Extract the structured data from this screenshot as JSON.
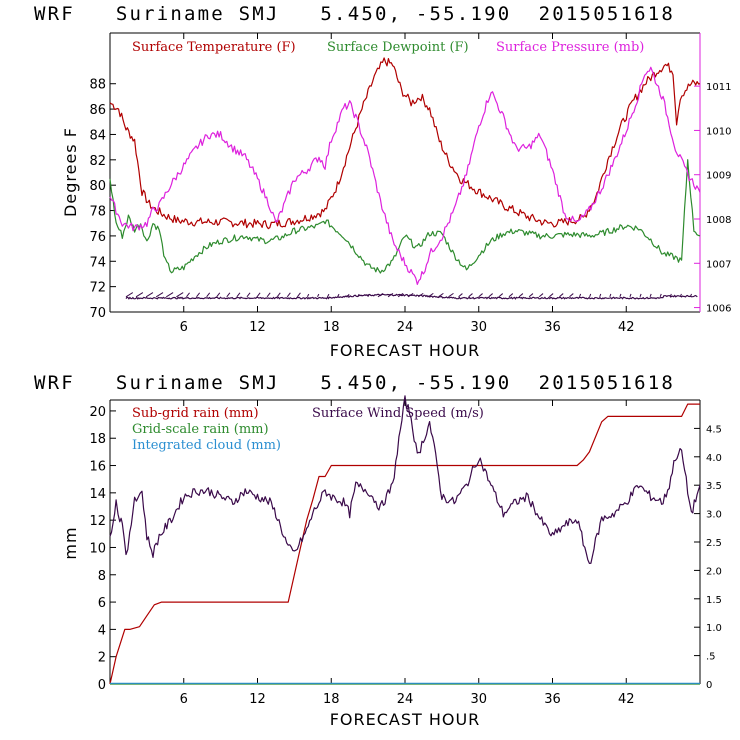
{
  "top_title": "WRF   Suriname SMJ   5.450, -55.190  2015051618",
  "bottom_title": "WRF   Suriname SMJ   5.450, -55.190  2015051618",
  "chart_data": [
    {
      "type": "line",
      "title": "WRF   Suriname SMJ   5.450, -55.190  2015051618",
      "xlabel": "FORECAST HOUR",
      "ylabel": "Degrees F",
      "xlim": [
        0,
        48
      ],
      "ylim": [
        70,
        92
      ],
      "y2lim": [
        1005.9,
        1012.2
      ],
      "x_ticks": [
        6,
        12,
        18,
        24,
        30,
        36,
        42
      ],
      "y_ticks": [
        70,
        72,
        74,
        76,
        78,
        80,
        82,
        84,
        86,
        88
      ],
      "y2_ticks": [
        {
          "v": 1006,
          "label": "1006"
        },
        {
          "v": 1007,
          "label": "1007"
        },
        {
          "v": 1008,
          "label": "1008"
        },
        {
          "v": 1009,
          "label": "1009"
        },
        {
          "v": 1010,
          "label": "1010"
        },
        {
          "v": 1011,
          "label": "1011"
        }
      ],
      "series": [
        {
          "name": "Surface Temperature (F)",
          "color": "#b00000",
          "axis": "left",
          "x": [
            0,
            0.7,
            1.3,
            2,
            2.6,
            3.2,
            3.8,
            4.5,
            5.5,
            7,
            9,
            11,
            13,
            14.5,
            15.5,
            16.5,
            17.5,
            18.5,
            19.5,
            20.5,
            21.5,
            22.3,
            23,
            23.7,
            24.5,
            25.3,
            26,
            26.8,
            27.5,
            28.5,
            30,
            32,
            34,
            35.5,
            36.5,
            37.5,
            38.5,
            39.5,
            40.5,
            41.5,
            42.5,
            43.5,
            44.5,
            45.2,
            45.8,
            46.1,
            46.4,
            46.8,
            47.3,
            48
          ],
          "values": [
            86.5,
            86,
            84.5,
            83.5,
            79.5,
            78.5,
            78,
            77.6,
            77.2,
            77.1,
            77.1,
            77,
            76.9,
            77.1,
            77.3,
            77.6,
            78,
            80,
            83,
            86,
            88.5,
            89.8,
            89.5,
            87.5,
            86.5,
            87,
            86,
            83.5,
            82,
            80.5,
            79.5,
            78.4,
            77.5,
            77,
            77,
            77.2,
            77.4,
            79,
            82,
            84.5,
            86.5,
            88,
            89,
            89.5,
            89,
            85,
            87,
            87.5,
            88,
            88
          ]
        },
        {
          "name": "Surface Dewpoint (F)",
          "color": "#2e8b2e",
          "axis": "left",
          "x": [
            0,
            0.5,
            1,
            1.5,
            2,
            2.5,
            3,
            3.5,
            4,
            4.5,
            5,
            6,
            7,
            8,
            9,
            10,
            11,
            12,
            13,
            14,
            15,
            16,
            17,
            17.5,
            18,
            19,
            20,
            21,
            22,
            23,
            24,
            25,
            26,
            27,
            28,
            29,
            30,
            31,
            32,
            33,
            34,
            35,
            36,
            37,
            38,
            39,
            40,
            41,
            42,
            43,
            44,
            45,
            46,
            46.5,
            47,
            47.5,
            48
          ],
          "values": [
            80.5,
            77,
            76,
            77.5,
            76.5,
            77,
            75.5,
            77,
            76.5,
            74,
            73.2,
            73.5,
            74.5,
            75.2,
            75.6,
            75.8,
            76,
            75.7,
            75.6,
            75.9,
            76.4,
            76.6,
            76.8,
            77.2,
            76.8,
            76,
            74.8,
            73.6,
            73.2,
            74,
            76,
            75,
            76.2,
            76.2,
            74.5,
            73.3,
            74.5,
            75.6,
            76.2,
            76.4,
            76.2,
            76,
            76,
            76.1,
            76.1,
            76,
            76.2,
            76.5,
            76.8,
            76.6,
            75.7,
            74.6,
            74.3,
            74,
            82,
            76.5,
            76
          ]
        },
        {
          "name": "Surface Pressure (mb)",
          "color": "#dd22dd",
          "axis": "right",
          "x": [
            0,
            1,
            2,
            3,
            3.5,
            4,
            5,
            6,
            7,
            8,
            9,
            10,
            11,
            12,
            13,
            13.5,
            14,
            15,
            16,
            17,
            17.5,
            18,
            19,
            19.5,
            20,
            21,
            22,
            23,
            24,
            25,
            25.5,
            26,
            27,
            28,
            29,
            30,
            31,
            32,
            33,
            34,
            35,
            36,
            37,
            38,
            39,
            40,
            41,
            42,
            43,
            43.5,
            44,
            45,
            46,
            47,
            48
          ],
          "values": [
            1008.5,
            1007.9,
            1007.8,
            1007.9,
            1008.2,
            1008.3,
            1008.8,
            1009.2,
            1009.6,
            1009.9,
            1009.9,
            1009.6,
            1009.4,
            1008.9,
            1008.3,
            1007.9,
            1008.2,
            1008.9,
            1009.1,
            1009.4,
            1009.2,
            1009.8,
            1010.5,
            1010.6,
            1010.3,
            1009.5,
            1008.4,
            1007.5,
            1007,
            1006.6,
            1006.8,
            1007.2,
            1007.6,
            1008.2,
            1009,
            1010.1,
            1010.9,
            1010.3,
            1009.6,
            1009.6,
            1009.9,
            1009.1,
            1008.1,
            1007.9,
            1008.2,
            1008.7,
            1009.3,
            1010,
            1010.8,
            1011.3,
            1011.4,
            1010.7,
            1009.6,
            1009,
            1008.6
          ]
        }
      ],
      "wind_barbs": {
        "y": 71.2,
        "label": "wind barbs along x axis"
      }
    },
    {
      "type": "line",
      "title": "WRF   Suriname SMJ   5.450, -55.190  2015051618",
      "xlabel": "FORECAST HOUR",
      "ylabel": "mm",
      "xlim": [
        0,
        48
      ],
      "ylim": [
        0,
        20.8
      ],
      "y2lim": [
        0,
        5
      ],
      "x_ticks": [
        6,
        12,
        18,
        24,
        30,
        36,
        42
      ],
      "y_ticks": [
        0,
        2,
        4,
        6,
        8,
        10,
        12,
        14,
        16,
        18,
        20
      ],
      "y2_ticks": [
        {
          "v": 0,
          "label": "0"
        },
        {
          "v": 0.5,
          "label": ".5"
        },
        {
          "v": 1,
          "label": "1.0"
        },
        {
          "v": 1.5,
          "label": "1.5"
        },
        {
          "v": 2,
          "label": "2.0"
        },
        {
          "v": 2.5,
          "label": "2.5"
        },
        {
          "v": 3,
          "label": "3.0"
        },
        {
          "v": 3.5,
          "label": "3.5"
        },
        {
          "v": 4,
          "label": "4.0"
        },
        {
          "v": 4.5,
          "label": "4.5"
        }
      ],
      "series": [
        {
          "name": "Sub-grid rain (mm)",
          "color": "#b00000",
          "axis": "left",
          "x": [
            0,
            0.5,
            1.2,
            1.6,
            2.4,
            3,
            3.6,
            4.2,
            14.5,
            15.5,
            16,
            16.5,
            17,
            17.5,
            18,
            38,
            38.5,
            39,
            40,
            40.5,
            41,
            46.5,
            47,
            48
          ],
          "values": [
            0,
            2,
            4,
            4,
            4.2,
            5,
            5.8,
            6,
            6,
            10,
            12,
            13.5,
            15.2,
            15.2,
            16,
            16,
            16.4,
            17,
            19.2,
            19.6,
            19.6,
            19.6,
            20.5,
            20.5
          ]
        },
        {
          "name": "Grid-scale rain (mm)",
          "color": "#2e8b2e",
          "axis": "left",
          "x": [
            0,
            48
          ],
          "values": [
            0,
            0
          ]
        },
        {
          "name": "Integrated cloud (mm)",
          "color": "#2b8fd1",
          "axis": "left",
          "x": [
            0,
            48
          ],
          "values": [
            0.05,
            0.05
          ]
        },
        {
          "name": "Surface Wind Speed (m/s)",
          "color": "#3a0a4a",
          "axis": "right",
          "x": [
            0,
            0.5,
            0.8,
            1,
            1.3,
            1.6,
            2,
            2.3,
            2.6,
            3,
            3.5,
            4,
            5,
            6,
            7,
            8,
            9,
            10,
            11,
            12,
            13,
            13.5,
            14,
            14.5,
            15,
            15.5,
            16,
            16.5,
            17,
            17.5,
            18,
            19,
            19.5,
            20,
            21,
            22,
            23,
            23.5,
            24,
            24.5,
            25,
            25.5,
            26,
            26.5,
            27,
            28,
            29,
            30,
            31,
            32,
            33,
            34,
            35,
            36,
            37,
            38,
            39,
            40,
            41,
            42,
            43,
            44,
            45,
            45.5,
            46,
            46.5,
            47,
            47.3,
            48
          ],
          "values": [
            2.6,
            3.2,
            2.9,
            2.9,
            2.2,
            2.6,
            3.3,
            3.3,
            3.4,
            2.6,
            2.3,
            2.6,
            2.9,
            3.3,
            3.4,
            3.4,
            3.3,
            3.2,
            3.4,
            3.3,
            3.2,
            3.0,
            2.7,
            2.4,
            2.3,
            2.5,
            2.7,
            3.0,
            3.2,
            3.4,
            3.3,
            3.2,
            3.0,
            3.5,
            3.4,
            3.1,
            3.5,
            4.3,
            5.0,
            4.7,
            4.0,
            4.3,
            4.6,
            4.0,
            3.3,
            3.2,
            3.5,
            4.0,
            3.5,
            3.0,
            3.2,
            3.3,
            2.9,
            2.6,
            2.8,
            2.9,
            2.1,
            2.9,
            3.0,
            3.2,
            3.5,
            3.3,
            3.2,
            3.5,
            4.0,
            4.1,
            3.4,
            3.0,
            3.5
          ]
        }
      ]
    }
  ]
}
